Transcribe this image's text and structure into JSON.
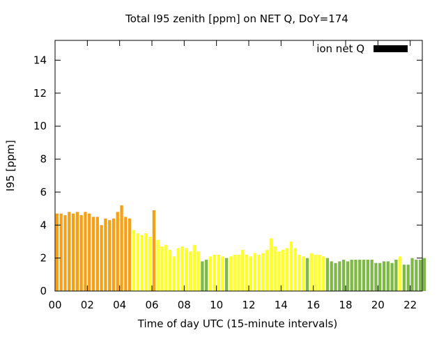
{
  "chart_data": {
    "type": "bar",
    "title": "Total I95 zenith [ppm] on NET Q, DoY=174",
    "xlabel": "Time of day UTC (15-minute intervals)",
    "ylabel": "I95 [ppm]",
    "legend": {
      "label": "ion net Q",
      "position": "top-right",
      "color": "#000000"
    },
    "xlim": [
      0,
      22.75
    ],
    "ylim": [
      0,
      15.2
    ],
    "x_ticks": [
      {
        "value": 0,
        "label": "00"
      },
      {
        "value": 2,
        "label": "02"
      },
      {
        "value": 4,
        "label": "04"
      },
      {
        "value": 6,
        "label": "06"
      },
      {
        "value": 8,
        "label": "08"
      },
      {
        "value": 10,
        "label": "10"
      },
      {
        "value": 12,
        "label": "12"
      },
      {
        "value": 14,
        "label": "14"
      },
      {
        "value": 16,
        "label": "16"
      },
      {
        "value": 18,
        "label": "18"
      },
      {
        "value": 20,
        "label": "20"
      },
      {
        "value": 22,
        "label": "22"
      }
    ],
    "y_ticks": [
      {
        "value": 0,
        "label": "0"
      },
      {
        "value": 2,
        "label": "2"
      },
      {
        "value": 4,
        "label": "4"
      },
      {
        "value": 6,
        "label": "6"
      },
      {
        "value": 8,
        "label": "8"
      },
      {
        "value": 10,
        "label": "10"
      },
      {
        "value": 12,
        "label": "12"
      },
      {
        "value": 14,
        "label": "14"
      }
    ],
    "grid": false,
    "bar_interval_hours": 0.25,
    "colors": {
      "orange": "#f5a015",
      "yellow": "#ffff2a",
      "green": "#7dba45"
    },
    "values": [
      4.7,
      4.7,
      4.6,
      4.8,
      4.7,
      4.8,
      4.6,
      4.8,
      4.7,
      4.5,
      4.5,
      4.0,
      4.4,
      4.3,
      4.4,
      4.8,
      5.2,
      4.5,
      4.4,
      3.7,
      3.5,
      3.4,
      3.5,
      3.3,
      4.9,
      3.1,
      2.7,
      2.8,
      2.5,
      2.1,
      2.6,
      2.7,
      2.6,
      2.4,
      2.8,
      2.4,
      1.8,
      1.9,
      2.1,
      2.2,
      2.2,
      2.1,
      2.0,
      2.1,
      2.2,
      2.2,
      2.5,
      2.2,
      2.1,
      2.3,
      2.2,
      2.3,
      2.5,
      3.2,
      2.7,
      2.4,
      2.5,
      2.6,
      3.0,
      2.6,
      2.2,
      2.1,
      2.0,
      2.3,
      2.2,
      2.2,
      2.1,
      2.0,
      1.8,
      1.7,
      1.8,
      1.9,
      1.8,
      1.9,
      1.9,
      1.9,
      1.9,
      1.9,
      1.9,
      1.7,
      1.7,
      1.8,
      1.8,
      1.7,
      1.9,
      2.1,
      1.6,
      1.6,
      2.0,
      1.9,
      1.9,
      2.0
    ],
    "bar_colors": [
      "orange",
      "orange",
      "orange",
      "orange",
      "orange",
      "orange",
      "orange",
      "orange",
      "orange",
      "orange",
      "orange",
      "orange",
      "orange",
      "orange",
      "orange",
      "orange",
      "orange",
      "orange",
      "orange",
      "yellow",
      "yellow",
      "yellow",
      "yellow",
      "yellow",
      "orange",
      "yellow",
      "yellow",
      "yellow",
      "yellow",
      "yellow",
      "yellow",
      "yellow",
      "yellow",
      "yellow",
      "yellow",
      "yellow",
      "green",
      "green",
      "yellow",
      "yellow",
      "yellow",
      "yellow",
      "green",
      "yellow",
      "yellow",
      "yellow",
      "yellow",
      "yellow",
      "yellow",
      "yellow",
      "yellow",
      "yellow",
      "yellow",
      "yellow",
      "yellow",
      "yellow",
      "yellow",
      "yellow",
      "yellow",
      "yellow",
      "yellow",
      "yellow",
      "green",
      "yellow",
      "yellow",
      "yellow",
      "yellow",
      "green",
      "green",
      "green",
      "green",
      "green",
      "green",
      "green",
      "green",
      "green",
      "green",
      "green",
      "green",
      "green",
      "green",
      "green",
      "green",
      "green",
      "green",
      "yellow",
      "green",
      "green",
      "green",
      "green",
      "green",
      "green"
    ]
  }
}
